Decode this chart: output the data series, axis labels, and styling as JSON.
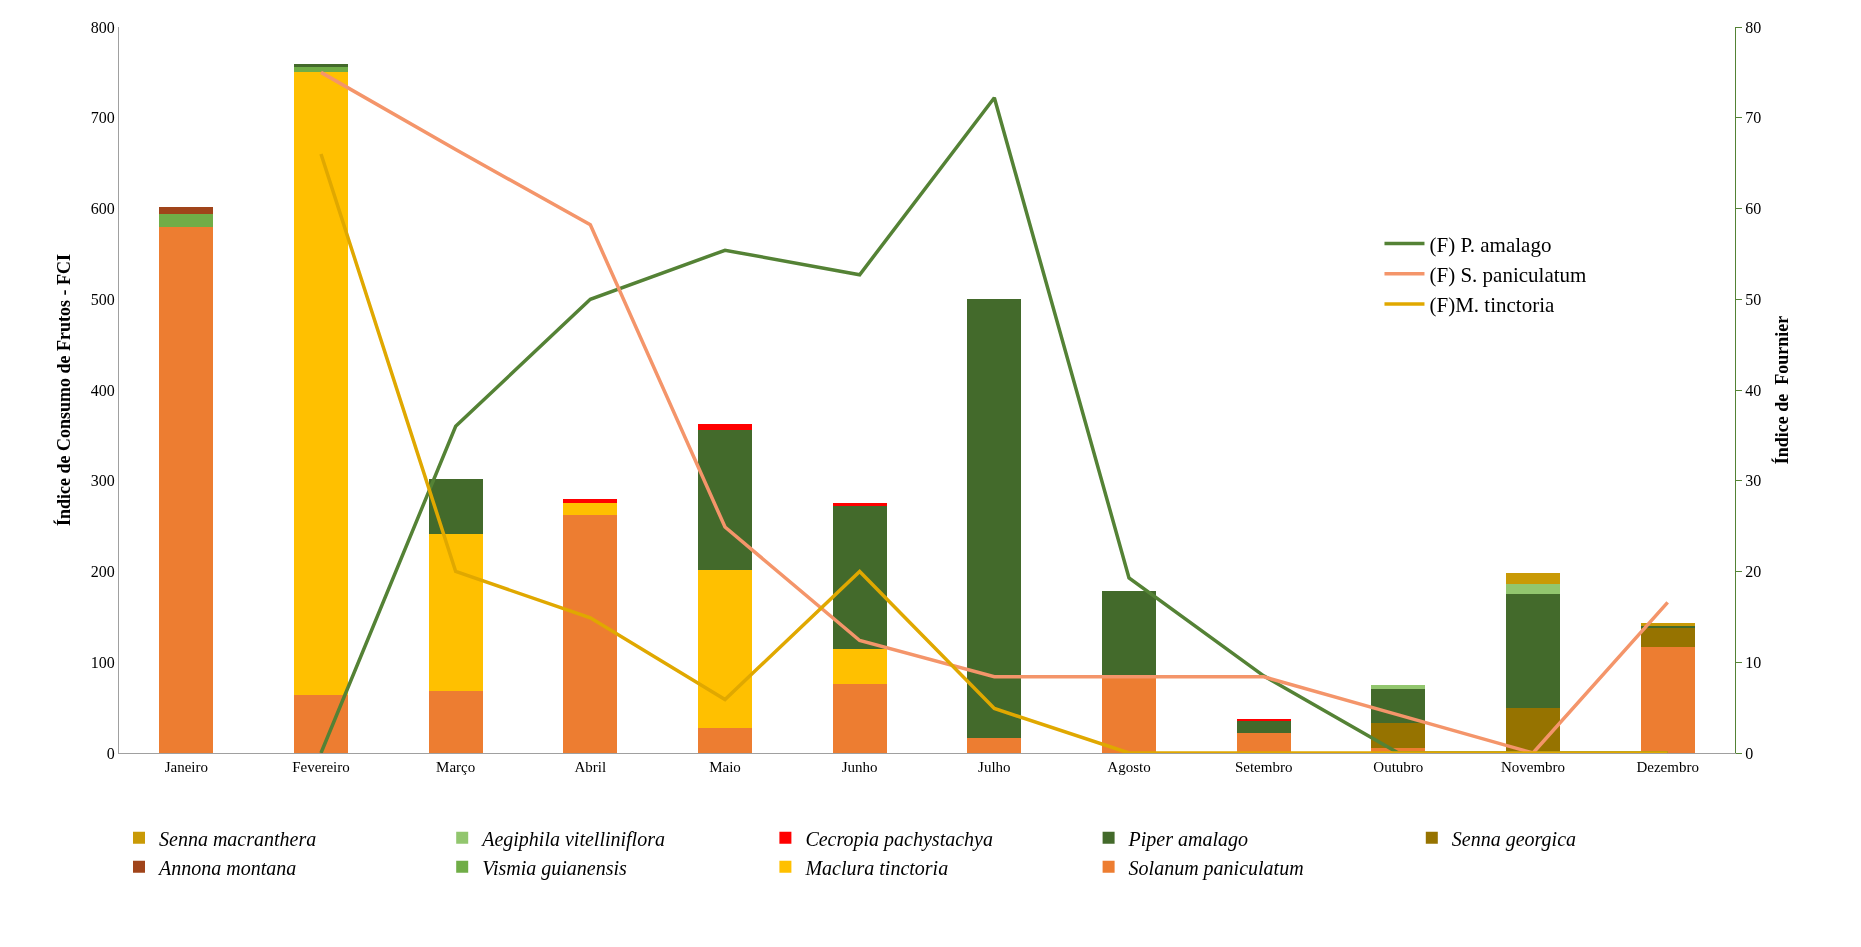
{
  "chart_data": {
    "type": "bar",
    "stacked": true,
    "categories": [
      "Janeiro",
      "Fevereiro",
      "Março",
      "Abril",
      "Maio",
      "Junho",
      "Julho",
      "Agosto",
      "Setembro",
      "Outubro",
      "Novembro",
      "Dezembro"
    ],
    "ylabel": "Índice de Consumo de Frutos - FCI",
    "y2label": "Índice de  Fournier",
    "ylim": [
      0,
      800
    ],
    "yticks": [
      0,
      100,
      200,
      300,
      400,
      500,
      600,
      700,
      800
    ],
    "y2lim": [
      0,
      80
    ],
    "y2ticks": [
      0,
      10,
      20,
      30,
      40,
      50,
      60,
      70,
      80
    ],
    "legend": "bottom",
    "series": [
      {
        "name": "Solanum paniculatum",
        "color": "#ed7d31",
        "values": [
          580,
          64,
          68,
          262,
          28,
          76,
          17,
          86,
          22,
          6,
          0,
          117
        ]
      },
      {
        "name": "Maclura tinctoria",
        "color": "#ffc000",
        "values": [
          0,
          686,
          173,
          14,
          174,
          39,
          0,
          0,
          0,
          0,
          0,
          0
        ]
      },
      {
        "name": "Vismia guianensis",
        "color": "#70ad47",
        "values": [
          14,
          6,
          0,
          0,
          0,
          0,
          0,
          0,
          0,
          0,
          0,
          0
        ]
      },
      {
        "name": "Annona montana",
        "color": "#a0441a",
        "values": [
          8,
          0,
          0,
          0,
          0,
          0,
          0,
          0,
          0,
          0,
          0,
          0
        ]
      },
      {
        "name": "Senna georgica",
        "color": "#967300",
        "values": [
          0,
          0,
          0,
          0,
          0,
          0,
          0,
          0,
          0,
          27,
          50,
          21
        ]
      },
      {
        "name": "Piper amalago",
        "color": "#436a2b",
        "values": [
          0,
          3,
          61,
          0,
          154,
          157,
          483,
          93,
          14,
          37,
          125,
          3
        ]
      },
      {
        "name": "Cecropia pachystachya",
        "color": "#ff0000",
        "values": [
          0,
          0,
          0,
          4,
          7,
          3,
          0,
          0,
          2,
          0,
          0,
          0
        ]
      },
      {
        "name": "Aegiphila vitelliniflora",
        "color": "#92c66e",
        "values": [
          0,
          0,
          0,
          0,
          0,
          0,
          0,
          0,
          0,
          5,
          11,
          0
        ]
      },
      {
        "name": "Senna macranthera",
        "color": "#c99a06",
        "values": [
          0,
          0,
          0,
          0,
          0,
          0,
          0,
          0,
          0,
          0,
          12,
          2
        ]
      },
      {
        "name": "(F) P. amalago",
        "type": "line",
        "axis": "y2",
        "color": "#548235",
        "values": [
          null,
          0,
          36,
          50,
          55.4,
          52.7,
          72.2,
          19.3,
          8.5,
          0,
          0,
          0
        ]
      },
      {
        "name": "(F) S. paniculatum",
        "type": "line",
        "axis": "y2",
        "color": "#f4956a",
        "values": [
          null,
          75,
          66.5,
          58.2,
          24.9,
          12.4,
          8.4,
          8.4,
          8.4,
          4.2,
          0,
          16.6
        ]
      },
      {
        "name": "(F)M. tinctoria",
        "type": "line",
        "axis": "y2",
        "color": "#e0a800",
        "values": [
          null,
          66,
          20,
          14.9,
          5.9,
          20,
          4.9,
          0,
          0,
          0,
          0,
          0
        ]
      }
    ]
  }
}
